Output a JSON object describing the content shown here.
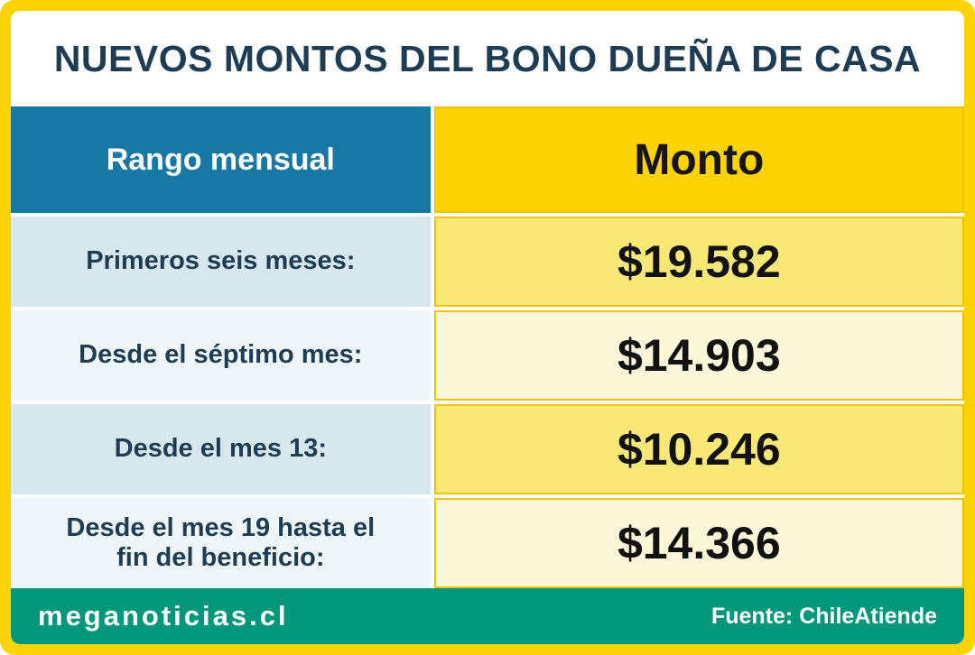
{
  "title": "NUEVOS MONTOS DEL BONO DUEÑA DE CASA",
  "chart_data": {
    "type": "table",
    "title": "NUEVOS MONTOS DEL BONO DUEÑA DE CASA",
    "columns": [
      "Rango mensual",
      "Monto"
    ],
    "rows": [
      [
        "Primeros seis meses:",
        "$19.582"
      ],
      [
        "Desde el séptimo mes:",
        "$14.903"
      ],
      [
        "Desde el mes 13:",
        "$10.246"
      ],
      [
        "Desde el mes 19 hasta el fin del beneficio:",
        "$14.366"
      ]
    ],
    "source": "Fuente: ChileAtiende"
  },
  "table": {
    "headers": {
      "range": "Rango mensual",
      "amount": "Monto"
    },
    "rows": [
      {
        "range": "Primeros seis meses:",
        "amount": "$19.582"
      },
      {
        "range": "Desde el séptimo mes:",
        "amount": "$14.903"
      },
      {
        "range": "Desde el mes 13:",
        "amount": "$10.246"
      },
      {
        "range": "Desde el mes 19 hasta el fin del beneficio:",
        "amount": "$14.366"
      }
    ]
  },
  "footer": {
    "site": "meganoticias.cl",
    "source": "Fuente: ChileAtiende"
  },
  "colors": {
    "frame_yellow": "#fdd305",
    "header_blue": "#1878a5",
    "row_blue_dark": "#d7e7ee",
    "row_blue_light": "#eef6f9",
    "row_yellow_dark": "#f9e876",
    "row_yellow_light": "#fdf7d9",
    "footer_green": "#00977b",
    "title_navy": "#1e3c54"
  }
}
